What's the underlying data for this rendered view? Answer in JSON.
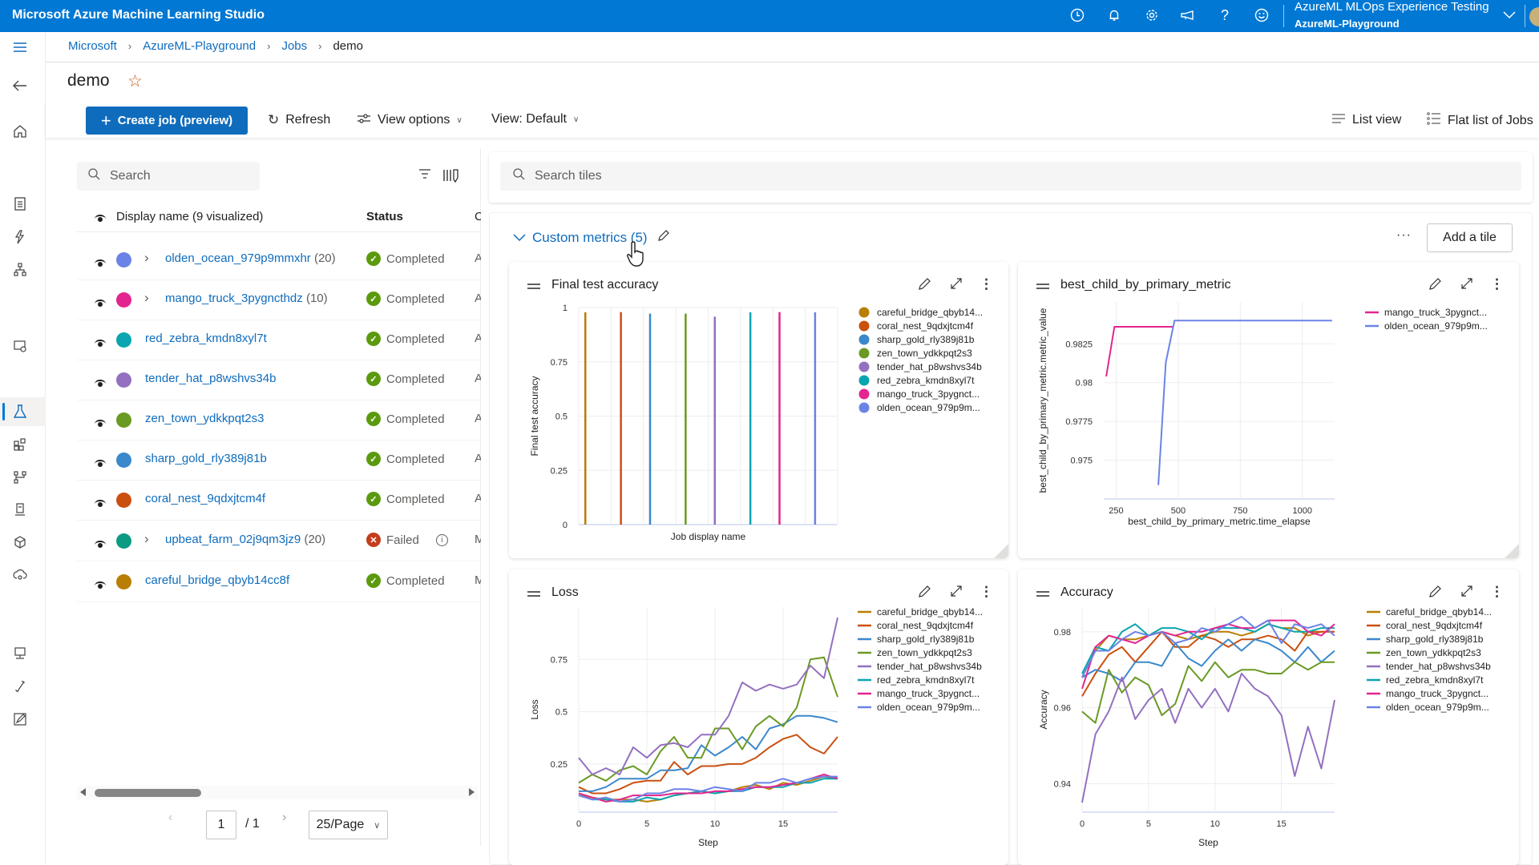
{
  "app": {
    "title": "Microsoft Azure Machine Learning Studio",
    "workspace_line1": "AzureML MLOps Experience Testing",
    "workspace_line2": "AzureML-Playground",
    "header_icons": [
      "clock-icon",
      "bell-icon",
      "gear-icon",
      "megaphone-icon",
      "help-icon",
      "smiley-icon"
    ]
  },
  "breadcrumb": [
    {
      "label": "Microsoft"
    },
    {
      "label": "AzureML-Playground"
    },
    {
      "label": "Jobs"
    },
    {
      "label": "demo"
    }
  ],
  "page": {
    "title": "demo"
  },
  "toolbar": {
    "create_job": "Create job (preview)",
    "refresh": "Refresh",
    "view_options": "View options",
    "view_default": "View: Default",
    "list_view": "List view",
    "flat_list": "Flat list of Jobs"
  },
  "jobs": {
    "search_placeholder": "Search",
    "col_name": "Display name (9 visualized)",
    "col_status": "Status",
    "col_third": "C",
    "rows": [
      {
        "name": "olden_ocean_979p9mmxhr",
        "count": "(20)",
        "color": "#6b83e6",
        "expandable": true,
        "status": "Completed",
        "third": "A"
      },
      {
        "name": "mango_truck_3pygncthdz",
        "count": "(10)",
        "color": "#e3258f",
        "expandable": true,
        "status": "Completed",
        "third": "A"
      },
      {
        "name": "red_zebra_kmdn8xyl7t",
        "count": "",
        "color": "#0aa5b0",
        "expandable": false,
        "status": "Completed",
        "third": "A"
      },
      {
        "name": "tender_hat_p8wshvs34b",
        "count": "",
        "color": "#9470c0",
        "expandable": false,
        "status": "Completed",
        "third": "A"
      },
      {
        "name": "zen_town_ydkkpqt2s3",
        "count": "",
        "color": "#6a9a23",
        "expandable": false,
        "status": "Completed",
        "third": "A"
      },
      {
        "name": "sharp_gold_rly389j81b",
        "count": "",
        "color": "#3b88cc",
        "expandable": false,
        "status": "Completed",
        "third": "A"
      },
      {
        "name": "coral_nest_9qdxjtcm4f",
        "count": "",
        "color": "#ca5010",
        "expandable": false,
        "status": "Completed",
        "third": "A"
      },
      {
        "name": "upbeat_farm_02j9qm3jz9",
        "count": "(20)",
        "color": "#0b9b83",
        "expandable": true,
        "status": "Failed",
        "third": "M"
      },
      {
        "name": "careful_bridge_qbyb14cc8f",
        "count": "",
        "color": "#b97e06",
        "expandable": false,
        "status": "Completed",
        "third": "M"
      }
    ],
    "pager": {
      "page": "1",
      "of": "/ 1",
      "per_page": "25/Page"
    }
  },
  "tiles_panel": {
    "search_placeholder": "Search tiles",
    "section_title": "Custom metrics (5)",
    "more": "···",
    "add_tile": "Add a tile"
  },
  "colors": {
    "accent": "#0078d4",
    "link": "#0f6cbd",
    "success": "#5b9a0f",
    "failed": "#c43e1c",
    "careful_bridge": "#b97e06",
    "coral_nest": "#ca5010",
    "sharp_gold": "#3b88cc",
    "zen_town": "#6a9a23",
    "tender_hat": "#9470c0",
    "red_zebra": "#0aa5b0",
    "mango_truck": "#e3258f",
    "olden_ocean": "#6b83e6"
  },
  "chart_data": [
    {
      "id": "final",
      "type": "bar",
      "title": "Final test accuracy",
      "xlabel": "Job display name",
      "ylabel": "Final test accuracy",
      "ylim": [
        0,
        1
      ],
      "yticks": [
        "0",
        "0.25",
        "0.5",
        "0.75",
        "1"
      ],
      "ytick_values": [
        0,
        0.25,
        0.5,
        0.75,
        1
      ],
      "grid": true,
      "legend_position": "right",
      "series": [
        {
          "name": "careful_bridge_qbyb14...",
          "color": "#b97e06",
          "value": 0.978
        },
        {
          "name": "coral_nest_9qdxjtcm4f",
          "color": "#ca5010",
          "value": 0.979
        },
        {
          "name": "sharp_gold_rly389j81b",
          "color": "#3b88cc",
          "value": 0.972
        },
        {
          "name": "zen_town_ydkkpqt2s3",
          "color": "#6a9a23",
          "value": 0.972
        },
        {
          "name": "tender_hat_p8wshvs34b",
          "color": "#9470c0",
          "value": 0.958
        },
        {
          "name": "red_zebra_kmdn8xyl7t",
          "color": "#0aa5b0",
          "value": 0.978
        },
        {
          "name": "mango_truck_3pygnct...",
          "color": "#e3258f",
          "value": 0.979
        },
        {
          "name": "olden_ocean_979p9m...",
          "color": "#6b83e6",
          "value": 0.978
        }
      ]
    },
    {
      "id": "best",
      "type": "line",
      "title": "best_child_by_primary_metric",
      "xlabel": "best_child_by_primary_metric.time_elapse",
      "ylabel": "best_child_by_primary_metric.metric_value",
      "xlim": [
        200,
        1130
      ],
      "ylim": [
        0.9725,
        0.9852
      ],
      "xticks": [
        "250",
        "500",
        "750",
        "1000"
      ],
      "xtick_values": [
        250,
        500,
        750,
        1000
      ],
      "yticks": [
        "0.975",
        "0.9775",
        "0.98",
        "0.9825"
      ],
      "ytick_values": [
        0.975,
        0.9775,
        0.98,
        0.9825
      ],
      "grid": true,
      "legend_position": "right",
      "series": [
        {
          "name": "mango_truck_3pygnct...",
          "color": "#e3258f",
          "x": [
            210,
            243,
            480
          ],
          "y": [
            0.9804,
            0.9836,
            0.9836
          ]
        },
        {
          "name": "olden_ocean_979p9m...",
          "color": "#6b83e6",
          "x": [
            420,
            450,
            485,
            1120
          ],
          "y": [
            0.9734,
            0.9813,
            0.984,
            0.984
          ]
        }
      ]
    },
    {
      "id": "loss",
      "type": "line",
      "title": "Loss",
      "xlabel": "Step",
      "ylabel": "Loss",
      "xlim": [
        0,
        19
      ],
      "ylim": [
        0.02,
        1.0
      ],
      "xticks": [
        "0",
        "5",
        "10",
        "15"
      ],
      "xtick_values": [
        0,
        5,
        10,
        15
      ],
      "yticks": [
        "0.25",
        "0.5",
        "0.75"
      ],
      "ytick_values": [
        0.25,
        0.5,
        0.75
      ],
      "grid": true,
      "legend_position": "right",
      "x": [
        0,
        1,
        2,
        3,
        4,
        5,
        6,
        7,
        8,
        9,
        10,
        11,
        12,
        13,
        14,
        15,
        16,
        17,
        18,
        19
      ],
      "series": [
        {
          "name": "careful_bridge_qbyb14...",
          "color": "#b97e06",
          "values": [
            0.1,
            0.09,
            0.08,
            0.08,
            0.08,
            0.07,
            0.08,
            0.1,
            0.11,
            0.12,
            0.11,
            0.12,
            0.14,
            0.15,
            0.13,
            0.16,
            0.15,
            0.17,
            0.19,
            0.18
          ]
        },
        {
          "name": "coral_nest_9qdxjtcm4f",
          "color": "#ca5010",
          "values": [
            0.14,
            0.11,
            0.11,
            0.13,
            0.16,
            0.17,
            0.17,
            0.26,
            0.2,
            0.24,
            0.24,
            0.25,
            0.25,
            0.28,
            0.33,
            0.37,
            0.39,
            0.33,
            0.3,
            0.38
          ]
        },
        {
          "name": "sharp_gold_rly389j81b",
          "color": "#3b88cc",
          "values": [
            0.12,
            0.12,
            0.14,
            0.18,
            0.18,
            0.18,
            0.22,
            0.22,
            0.23,
            0.34,
            0.29,
            0.33,
            0.38,
            0.32,
            0.42,
            0.44,
            0.48,
            0.48,
            0.47,
            0.45
          ]
        },
        {
          "name": "zen_town_ydkkpqt2s3",
          "color": "#6a9a23",
          "values": [
            0.16,
            0.2,
            0.17,
            0.22,
            0.24,
            0.2,
            0.31,
            0.38,
            0.28,
            0.28,
            0.42,
            0.42,
            0.32,
            0.43,
            0.48,
            0.43,
            0.52,
            0.75,
            0.76,
            0.57
          ]
        },
        {
          "name": "tender_hat_p8wshvs34b",
          "color": "#9470c0",
          "values": [
            0.28,
            0.2,
            0.23,
            0.2,
            0.33,
            0.28,
            0.34,
            0.35,
            0.33,
            0.39,
            0.39,
            0.48,
            0.64,
            0.6,
            0.63,
            0.61,
            0.63,
            0.72,
            0.66,
            0.95
          ]
        },
        {
          "name": "red_zebra_kmdn8xyl7t",
          "color": "#0aa5b0",
          "values": [
            0.1,
            0.08,
            0.08,
            0.07,
            0.07,
            0.09,
            0.08,
            0.1,
            0.11,
            0.12,
            0.11,
            0.12,
            0.12,
            0.14,
            0.14,
            0.14,
            0.16,
            0.16,
            0.18,
            0.18
          ]
        },
        {
          "name": "mango_truck_3pygnct...",
          "color": "#e3258f",
          "values": [
            0.11,
            0.09,
            0.07,
            0.08,
            0.1,
            0.1,
            0.1,
            0.11,
            0.11,
            0.11,
            0.12,
            0.12,
            0.13,
            0.14,
            0.14,
            0.15,
            0.16,
            0.18,
            0.2,
            0.18
          ]
        },
        {
          "name": "olden_ocean_979p9m...",
          "color": "#6b83e6",
          "values": [
            0.1,
            0.08,
            0.09,
            0.07,
            0.08,
            0.11,
            0.11,
            0.13,
            0.13,
            0.12,
            0.14,
            0.13,
            0.12,
            0.16,
            0.16,
            0.18,
            0.16,
            0.18,
            0.19,
            0.19
          ]
        }
      ]
    },
    {
      "id": "acc",
      "type": "line",
      "title": "Accuracy",
      "xlabel": "Step",
      "ylabel": "Accuracy",
      "xlim": [
        0,
        19
      ],
      "ylim": [
        0.9325,
        0.9865
      ],
      "xticks": [
        "0",
        "5",
        "10",
        "15"
      ],
      "xtick_values": [
        0,
        5,
        10,
        15
      ],
      "yticks": [
        "0.94",
        "0.96",
        "0.98"
      ],
      "ytick_values": [
        0.94,
        0.96,
        0.98
      ],
      "grid": true,
      "legend_position": "right",
      "x": [
        0,
        1,
        2,
        3,
        4,
        5,
        6,
        7,
        8,
        9,
        10,
        11,
        12,
        13,
        14,
        15,
        16,
        17,
        18,
        19
      ],
      "series": [
        {
          "name": "careful_bridge_qbyb14...",
          "color": "#b97e06",
          "values": [
            0.968,
            0.975,
            0.979,
            0.978,
            0.978,
            0.979,
            0.98,
            0.979,
            0.978,
            0.979,
            0.98,
            0.98,
            0.979,
            0.98,
            0.982,
            0.981,
            0.981,
            0.979,
            0.98,
            0.98
          ]
        },
        {
          "name": "coral_nest_9qdxjtcm4f",
          "color": "#ca5010",
          "values": [
            0.963,
            0.969,
            0.974,
            0.976,
            0.972,
            0.976,
            0.98,
            0.976,
            0.976,
            0.979,
            0.978,
            0.976,
            0.978,
            0.978,
            0.979,
            0.978,
            0.975,
            0.98,
            0.98,
            0.98
          ]
        },
        {
          "name": "sharp_gold_rly389j81b",
          "color": "#3b88cc",
          "values": [
            0.968,
            0.97,
            0.969,
            0.967,
            0.972,
            0.972,
            0.971,
            0.977,
            0.973,
            0.971,
            0.975,
            0.978,
            0.975,
            0.978,
            0.977,
            0.975,
            0.972,
            0.976,
            0.972,
            0.975
          ]
        },
        {
          "name": "zen_town_ydkkpqt2s3",
          "color": "#6a9a23",
          "values": [
            0.959,
            0.956,
            0.97,
            0.964,
            0.968,
            0.966,
            0.958,
            0.961,
            0.971,
            0.967,
            0.972,
            0.968,
            0.97,
            0.97,
            0.969,
            0.969,
            0.972,
            0.97,
            0.972,
            0.972
          ]
        },
        {
          "name": "tender_hat_p8wshvs34b",
          "color": "#9470c0",
          "values": [
            0.935,
            0.953,
            0.959,
            0.968,
            0.957,
            0.962,
            0.965,
            0.956,
            0.965,
            0.96,
            0.965,
            0.959,
            0.969,
            0.965,
            0.963,
            0.958,
            0.942,
            0.955,
            0.944,
            0.962
          ]
        },
        {
          "name": "red_zebra_kmdn8xyl7t",
          "color": "#0aa5b0",
          "values": [
            0.969,
            0.976,
            0.975,
            0.98,
            0.982,
            0.979,
            0.981,
            0.981,
            0.98,
            0.978,
            0.981,
            0.981,
            0.981,
            0.98,
            0.982,
            0.981,
            0.98,
            0.98,
            0.981,
            0.981
          ]
        },
        {
          "name": "mango_truck_3pygnct...",
          "color": "#e3258f",
          "values": [
            0.965,
            0.976,
            0.979,
            0.978,
            0.977,
            0.979,
            0.98,
            0.979,
            0.98,
            0.98,
            0.981,
            0.982,
            0.981,
            0.981,
            0.983,
            0.983,
            0.983,
            0.98,
            0.979,
            0.982
          ]
        },
        {
          "name": "olden_ocean_979p9m...",
          "color": "#6b83e6",
          "values": [
            0.968,
            0.975,
            0.975,
            0.978,
            0.98,
            0.979,
            0.98,
            0.977,
            0.978,
            0.981,
            0.98,
            0.982,
            0.984,
            0.981,
            0.983,
            0.977,
            0.982,
            0.981,
            0.982,
            0.979
          ]
        }
      ]
    }
  ]
}
